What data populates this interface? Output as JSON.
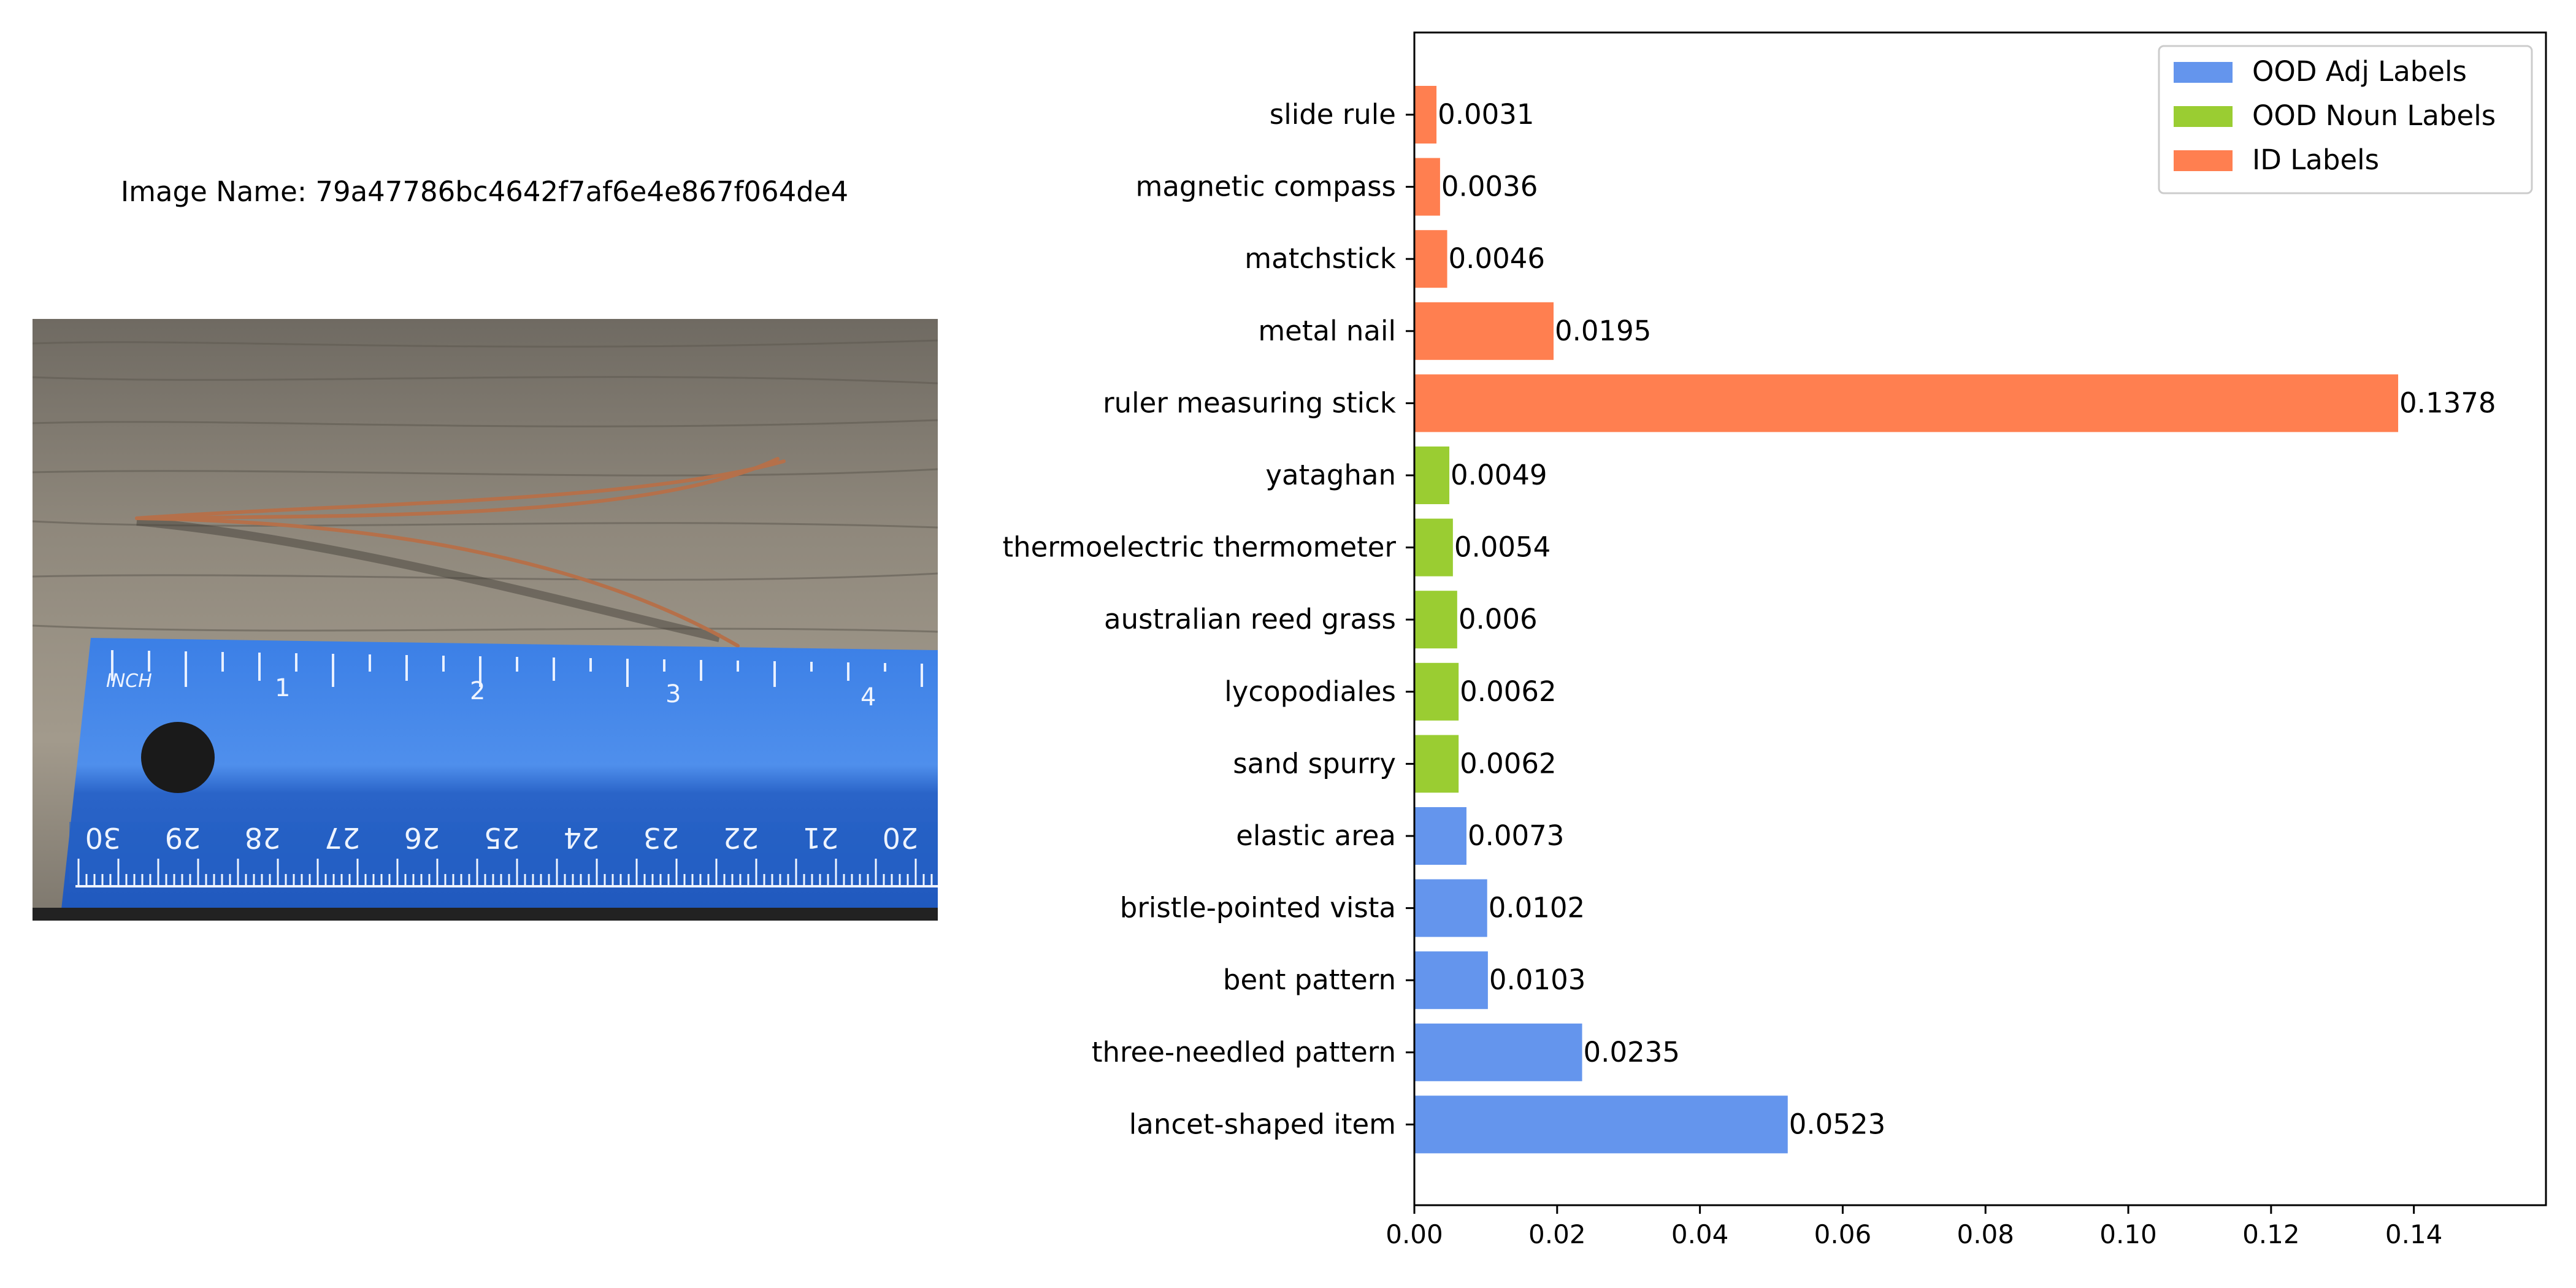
{
  "image_caption": {
    "label": "Image Name:",
    "value": "79a47786bc4642f7af6e4e867f064de4"
  },
  "photo": {
    "description_icon": "photo-pine-needles-on-ruler",
    "ruler_unit_label": "INCH",
    "inch_marks": [
      "1",
      "2",
      "3",
      "4"
    ],
    "cm_marks": [
      "30",
      "29",
      "28",
      "27",
      "26",
      "25",
      "24",
      "23",
      "22",
      "21",
      "20"
    ],
    "colors": {
      "wood": "#8a8478",
      "ruler": "#2f6fd6",
      "needle": "#b5704a"
    }
  },
  "chart_data": {
    "type": "bar",
    "orientation": "horizontal",
    "categories": [
      "slide rule",
      "magnetic compass",
      "matchstick",
      "metal nail",
      "ruler measuring stick",
      "yataghan",
      "thermoelectric thermometer",
      "australian reed grass",
      "lycopodiales",
      "sand spurry",
      "elastic area",
      "bristle-pointed vista",
      "bent pattern",
      "three-needled pattern",
      "lancet-shaped item"
    ],
    "values": [
      0.0031,
      0.0036,
      0.0046,
      0.0195,
      0.1378,
      0.0049,
      0.0054,
      0.006,
      0.0062,
      0.0062,
      0.0073,
      0.0102,
      0.0103,
      0.0235,
      0.0523
    ],
    "value_labels": [
      "0.0031",
      "0.0036",
      "0.0046",
      "0.0195",
      "0.1378",
      "0.0049",
      "0.0054",
      "0.006",
      "0.0062",
      "0.0062",
      "0.0073",
      "0.0102",
      "0.0103",
      "0.0235",
      "0.0523"
    ],
    "groups": [
      "ID Labels",
      "ID Labels",
      "ID Labels",
      "ID Labels",
      "ID Labels",
      "OOD Noun Labels",
      "OOD Noun Labels",
      "OOD Noun Labels",
      "OOD Noun Labels",
      "OOD Noun Labels",
      "OOD Adj Labels",
      "OOD Adj Labels",
      "OOD Adj Labels",
      "OOD Adj Labels",
      "OOD Adj Labels"
    ],
    "legend": [
      {
        "name": "OOD Adj Labels",
        "color": "#6495ED"
      },
      {
        "name": "OOD Noun Labels",
        "color": "#9ACD32"
      },
      {
        "name": "ID Labels",
        "color": "#FF7F50"
      }
    ],
    "legend_position": "top-right",
    "xlim": [
      0,
      0.1585
    ],
    "xticks": [
      0,
      0.02,
      0.04,
      0.06,
      0.08,
      0.1,
      0.12,
      0.14
    ],
    "xtick_labels": [
      "0.00",
      "0.02",
      "0.04",
      "0.06",
      "0.08",
      "0.10",
      "0.12",
      "0.14"
    ],
    "title": "",
    "xlabel": "",
    "ylabel": "",
    "grid": false
  }
}
